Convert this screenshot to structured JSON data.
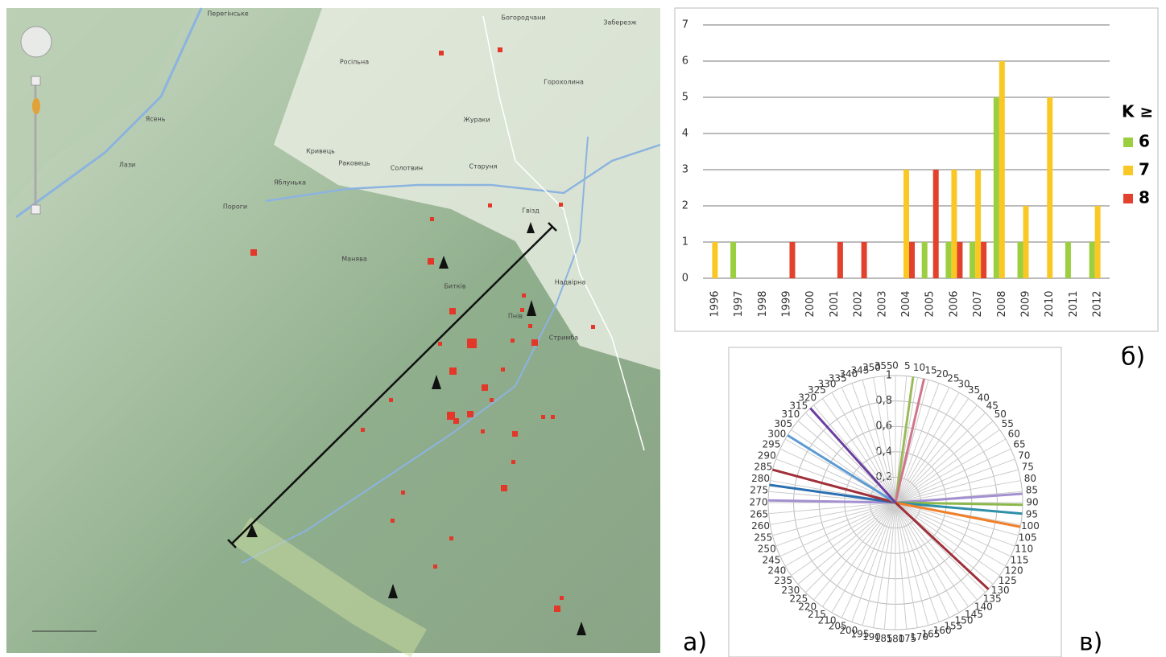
{
  "panels": [
    "а)",
    "б)",
    "в)"
  ],
  "map": {
    "labels": [
      "Перегінське",
      "Богородчани",
      "Заберезж",
      "Росільна",
      "Ясень",
      "Горохолина",
      "Жураки",
      "Кривець",
      "Лази",
      "Раковець",
      "Солотвин",
      "Старуня",
      "Яблунька",
      "Пороги",
      "Гвізд",
      "Манява",
      "Битків",
      "Надвірна",
      "Пнів",
      "Стримба"
    ]
  },
  "chart_data": [
    {
      "type": "bar",
      "categories": [
        "1996",
        "1997",
        "1998",
        "1999",
        "2000",
        "2001",
        "2002",
        "2003",
        "2004",
        "2005",
        "2006",
        "2007",
        "2008",
        "2009",
        "2010",
        "2011",
        "2012"
      ],
      "series": [
        {
          "name": "6",
          "color": "#9bcf3f",
          "values": [
            0,
            1,
            0,
            0,
            0,
            0,
            0,
            0,
            0,
            1,
            1,
            1,
            5,
            1,
            0,
            1,
            1
          ]
        },
        {
          "name": "7",
          "color": "#f9c825",
          "values": [
            1,
            0,
            0,
            0,
            0,
            0,
            0,
            0,
            3,
            0,
            3,
            3,
            6,
            2,
            5,
            0,
            2
          ]
        },
        {
          "name": "8",
          "color": "#e2412d",
          "values": [
            0,
            0,
            0,
            1,
            0,
            1,
            1,
            0,
            1,
            3,
            1,
            1,
            0,
            0,
            0,
            0,
            0
          ]
        }
      ],
      "legend_title": "K ≥",
      "ylim": [
        0,
        7
      ],
      "yticks": [
        0,
        1,
        2,
        3,
        4,
        5,
        6,
        7
      ],
      "grid": true
    },
    {
      "type": "polar",
      "rlim": [
        0,
        1
      ],
      "rticks": [
        0,
        {
          "value": 0.2,
          "label": "0,2"
        },
        {
          "value": 0.4,
          "label": "0,4"
        },
        {
          "value": 0.6,
          "label": "0,6"
        },
        {
          "value": 0.8,
          "label": "0,8"
        },
        1
      ],
      "thetaticks": [
        0,
        5,
        10,
        15,
        20,
        25,
        30,
        35,
        40,
        45,
        50,
        55,
        60,
        65,
        70,
        75,
        80,
        85,
        90,
        95,
        100,
        105,
        110,
        115,
        120,
        125,
        130,
        135,
        140,
        145,
        150,
        155,
        160,
        165,
        170,
        175,
        180,
        185,
        190,
        195,
        200,
        205,
        210,
        215,
        220,
        225,
        230,
        235,
        240,
        245,
        250,
        255,
        260,
        265,
        270,
        275,
        280,
        285,
        290,
        295,
        300,
        305,
        310,
        315,
        320,
        325,
        330,
        335,
        340,
        345,
        350,
        355
      ],
      "rays": [
        {
          "angle": 8,
          "value": 1,
          "color": "#9bbb59"
        },
        {
          "angle": 13,
          "value": 1,
          "color": "#d0768c"
        },
        {
          "angle": 86,
          "value": 1,
          "color": "#a390d0"
        },
        {
          "angle": 91,
          "value": 1,
          "color": "#8cb84a"
        },
        {
          "angle": 95,
          "value": 1,
          "color": "#2e8fa8"
        },
        {
          "angle": 101,
          "value": 1,
          "color": "#f07f2a"
        },
        {
          "angle": 133,
          "value": 1,
          "color": "#a0303a"
        },
        {
          "angle": 271,
          "value": 1,
          "color": "#a390d0"
        },
        {
          "angle": 278,
          "value": 1,
          "color": "#2a6fb0"
        },
        {
          "angle": 285,
          "value": 1,
          "color": "#a0303a"
        },
        {
          "angle": 302,
          "value": 1,
          "color": "#5b9bd5"
        },
        {
          "angle": 318,
          "value": 1,
          "color": "#6a3fa0"
        }
      ]
    }
  ]
}
